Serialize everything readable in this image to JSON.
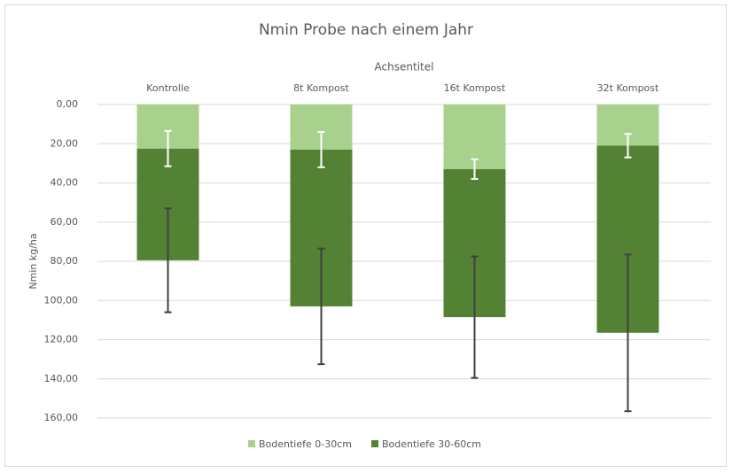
{
  "chart_data": {
    "type": "stacked_bar",
    "title": "Nmin Probe nach einem Jahr",
    "x_axis_label": "Achsentitel",
    "y_axis_label": "Nmin kg/ha",
    "categories": [
      "Kontrolle",
      "8t Kompost",
      "16t Kompost",
      "32t Kompost"
    ],
    "series": [
      {
        "name": "Bodentiefe 0-30cm",
        "color": "#a9d18e",
        "error_color": "#ffffff",
        "values": [
          22.5,
          23,
          33,
          21
        ],
        "errors": [
          9,
          9,
          5,
          6
        ]
      },
      {
        "name": "Bodentiefe 30-60cm",
        "color": "#548235",
        "error_color": "#404040",
        "values": [
          57,
          80,
          75.5,
          95.5
        ],
        "errors": [
          26.5,
          29.5,
          31,
          40
        ]
      }
    ],
    "ylim": [
      0,
      160
    ],
    "y_reversed": true,
    "yticks": [
      {
        "value": 0,
        "label": "0,00"
      },
      {
        "value": 20,
        "label": "20,00"
      },
      {
        "value": 40,
        "label": "40,00"
      },
      {
        "value": 60,
        "label": "60,00"
      },
      {
        "value": 80,
        "label": "80,00"
      },
      {
        "value": 100,
        "label": "100,00"
      },
      {
        "value": 120,
        "label": "120,00"
      },
      {
        "value": 140,
        "label": "140,00"
      },
      {
        "value": 160,
        "label": "160,00"
      }
    ],
    "grid": true,
    "legend_position": "bottom"
  }
}
